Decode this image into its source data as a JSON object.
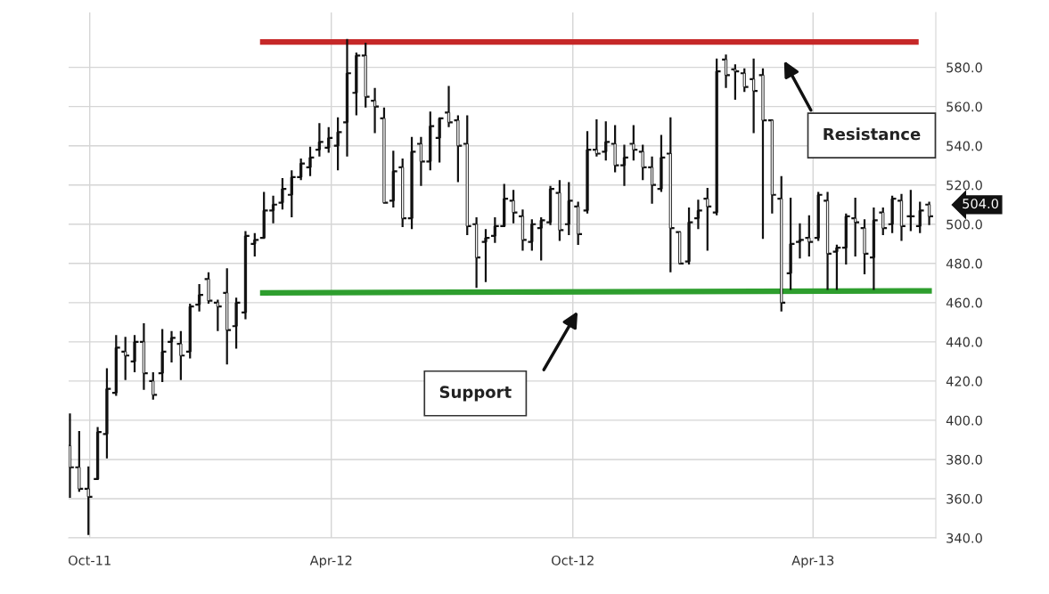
{
  "chart_data": {
    "type": "candlestick",
    "x": [
      "2011-09-16",
      "2011-09-23",
      "2011-09-30",
      "2011-10-07",
      "2011-10-14",
      "2011-10-21",
      "2011-10-28",
      "2011-11-04",
      "2011-11-11",
      "2011-11-18",
      "2011-11-25",
      "2011-12-02",
      "2011-12-09",
      "2011-12-16",
      "2011-12-23",
      "2011-12-30",
      "2012-01-06",
      "2012-01-13",
      "2012-01-20",
      "2012-01-27",
      "2012-02-03",
      "2012-02-10",
      "2012-02-17",
      "2012-02-24",
      "2012-03-02",
      "2012-03-09",
      "2012-03-16",
      "2012-03-23",
      "2012-03-30",
      "2012-04-06",
      "2012-04-13",
      "2012-04-20",
      "2012-04-27",
      "2012-05-04",
      "2012-05-11",
      "2012-05-18",
      "2012-05-25",
      "2012-06-01",
      "2012-06-08",
      "2012-06-15",
      "2012-06-22",
      "2012-06-29",
      "2012-07-06",
      "2012-07-13",
      "2012-07-20",
      "2012-07-27",
      "2012-08-03",
      "2012-08-10",
      "2012-08-17",
      "2012-08-24",
      "2012-08-31",
      "2012-09-07",
      "2012-09-14",
      "2012-09-21",
      "2012-09-28",
      "2012-10-05",
      "2012-10-12",
      "2012-10-19",
      "2012-10-26",
      "2012-11-02",
      "2012-11-09",
      "2012-11-16",
      "2012-11-23",
      "2012-11-30",
      "2012-12-07",
      "2012-12-14",
      "2012-12-21",
      "2012-12-28",
      "2013-01-04",
      "2013-01-11",
      "2013-01-18",
      "2013-01-25",
      "2013-02-01",
      "2013-02-08",
      "2013-02-15",
      "2013-02-22",
      "2013-03-01",
      "2013-03-08",
      "2013-03-15",
      "2013-03-22",
      "2013-03-29",
      "2013-04-05",
      "2013-04-12",
      "2013-04-19",
      "2013-04-26",
      "2013-05-03",
      "2013-05-10",
      "2013-05-17",
      "2013-05-24",
      "2013-05-31",
      "2013-06-07",
      "2013-06-14",
      "2013-06-21",
      "2013-06-28"
    ],
    "ohlc": [
      [
        387,
        403,
        361,
        376
      ],
      [
        376,
        394,
        364,
        365
      ],
      [
        365,
        376,
        342,
        361
      ],
      [
        370,
        396,
        370,
        394
      ],
      [
        393,
        426,
        381,
        416
      ],
      [
        414,
        443,
        413,
        437
      ],
      [
        435,
        442,
        421,
        433
      ],
      [
        430,
        443,
        425,
        440
      ],
      [
        440,
        449,
        416,
        424
      ],
      [
        420,
        424,
        411,
        413
      ],
      [
        424,
        446,
        420,
        435
      ],
      [
        440,
        445,
        430,
        442
      ],
      [
        439,
        445,
        421,
        433
      ],
      [
        435,
        459,
        432,
        458
      ],
      [
        459,
        469,
        456,
        464
      ],
      [
        472,
        475,
        460,
        461
      ],
      [
        460,
        461,
        446,
        458
      ],
      [
        465,
        477,
        429,
        446
      ],
      [
        448,
        462,
        437,
        460
      ],
      [
        455,
        496,
        452,
        494
      ],
      [
        490,
        495,
        484,
        492
      ],
      [
        493,
        516,
        493,
        507
      ],
      [
        507,
        514,
        501,
        510
      ],
      [
        511,
        523,
        508,
        518
      ],
      [
        515,
        527,
        504,
        524
      ],
      [
        524,
        533,
        523,
        531
      ],
      [
        529,
        539,
        525,
        534
      ],
      [
        538,
        551,
        535,
        542
      ],
      [
        539,
        549,
        537,
        544
      ],
      [
        540,
        554,
        528,
        547
      ],
      [
        552,
        594,
        535,
        577
      ],
      [
        567,
        587,
        556,
        586
      ],
      [
        586,
        592,
        560,
        565
      ],
      [
        563,
        569,
        547,
        560
      ],
      [
        554,
        559,
        511,
        511
      ],
      [
        512,
        537,
        509,
        527
      ],
      [
        529,
        533,
        499,
        503
      ],
      [
        503,
        544,
        498,
        537
      ],
      [
        541,
        544,
        520,
        532
      ],
      [
        532,
        557,
        528,
        550
      ],
      [
        544,
        554,
        532,
        554
      ],
      [
        557,
        570,
        550,
        552
      ],
      [
        553,
        555,
        522,
        540
      ],
      [
        541,
        555,
        495,
        499
      ],
      [
        500,
        503,
        468,
        483
      ],
      [
        491,
        497,
        471,
        493
      ],
      [
        494,
        503,
        491,
        499
      ],
      [
        499,
        520,
        499,
        513
      ],
      [
        512,
        517,
        501,
        506
      ],
      [
        504,
        507,
        487,
        492
      ],
      [
        491,
        502,
        487,
        500
      ],
      [
        498,
        503,
        482,
        502
      ],
      [
        501,
        519,
        500,
        518
      ],
      [
        516,
        522,
        492,
        497
      ],
      [
        500,
        521,
        495,
        512
      ],
      [
        509,
        511,
        490,
        495
      ],
      [
        507,
        547,
        506,
        538
      ],
      [
        538,
        553,
        535,
        536
      ],
      [
        537,
        552,
        533,
        542
      ],
      [
        541,
        550,
        527,
        530
      ],
      [
        530,
        540,
        520,
        534
      ],
      [
        541,
        550,
        533,
        538
      ],
      [
        537,
        540,
        523,
        529
      ],
      [
        529,
        534,
        511,
        520
      ],
      [
        518,
        545,
        517,
        534
      ],
      [
        536,
        554,
        476,
        498
      ],
      [
        496,
        496,
        480,
        480
      ],
      [
        481,
        508,
        480,
        501
      ],
      [
        503,
        512,
        498,
        507
      ],
      [
        513,
        518,
        487,
        509
      ],
      [
        506,
        584,
        505,
        578
      ],
      [
        584,
        586,
        570,
        576
      ],
      [
        579,
        581,
        564,
        578
      ],
      [
        577,
        579,
        568,
        570
      ],
      [
        574,
        584,
        547,
        568
      ],
      [
        576,
        579,
        493,
        553
      ],
      [
        553,
        553,
        506,
        515
      ],
      [
        513,
        524,
        456,
        460
      ],
      [
        475,
        513,
        467,
        490
      ],
      [
        491,
        500,
        483,
        492
      ],
      [
        493,
        504,
        484,
        491
      ],
      [
        493,
        516,
        492,
        515
      ],
      [
        512,
        516,
        467,
        485
      ],
      [
        486,
        489,
        467,
        488
      ],
      [
        488,
        505,
        480,
        504
      ],
      [
        503,
        513,
        484,
        501
      ],
      [
        498,
        502,
        475,
        485
      ],
      [
        483,
        508,
        467,
        502
      ],
      [
        506,
        508,
        495,
        498
      ],
      [
        500,
        514,
        496,
        513
      ],
      [
        512,
        515,
        492,
        499
      ],
      [
        504,
        517,
        497,
        504
      ],
      [
        499,
        511,
        496,
        507
      ],
      [
        510,
        511,
        500,
        504
      ]
    ],
    "color": "#111111",
    "series": [
      {
        "type": "line",
        "color": "#c62828",
        "x": [
          "2012-02-07",
          "2013-06-20"
        ],
        "values": [
          593,
          593
        ]
      },
      {
        "type": "line",
        "color": "#2e9e2e",
        "x": [
          "2012-02-07",
          "2013-06-30"
        ],
        "values": [
          465,
          466
        ]
      }
    ],
    "annotations": [
      "Resistance",
      "Support",
      "504.0"
    ],
    "xlim": [
      "2011-09-15",
      "2013-07-03"
    ],
    "xticks": [
      {
        "value": "2011-10-01",
        "label": "Oct-11"
      },
      {
        "value": "2012-04-01",
        "label": "Apr-12"
      },
      {
        "value": "2012-10-01",
        "label": "Oct-12"
      },
      {
        "value": "2013-04-01",
        "label": "Apr-13"
      }
    ],
    "ylim": [
      340,
      608
    ],
    "yticks": [
      {
        "value": 340,
        "label": "340.0"
      },
      {
        "value": 360,
        "label": "360.0"
      },
      {
        "value": 380,
        "label": "380.0"
      },
      {
        "value": 400,
        "label": "400.0"
      },
      {
        "value": 420,
        "label": "420.0"
      },
      {
        "value": 440,
        "label": "440.0"
      },
      {
        "value": 460,
        "label": "460.0"
      },
      {
        "value": 480,
        "label": "480.0"
      },
      {
        "value": 500,
        "label": "500.0"
      },
      {
        "value": 520,
        "label": "520.0"
      },
      {
        "value": 540,
        "label": "540.0"
      },
      {
        "value": 560,
        "label": "560.0"
      },
      {
        "value": 580,
        "label": "580.0"
      }
    ],
    "grid": true
  }
}
